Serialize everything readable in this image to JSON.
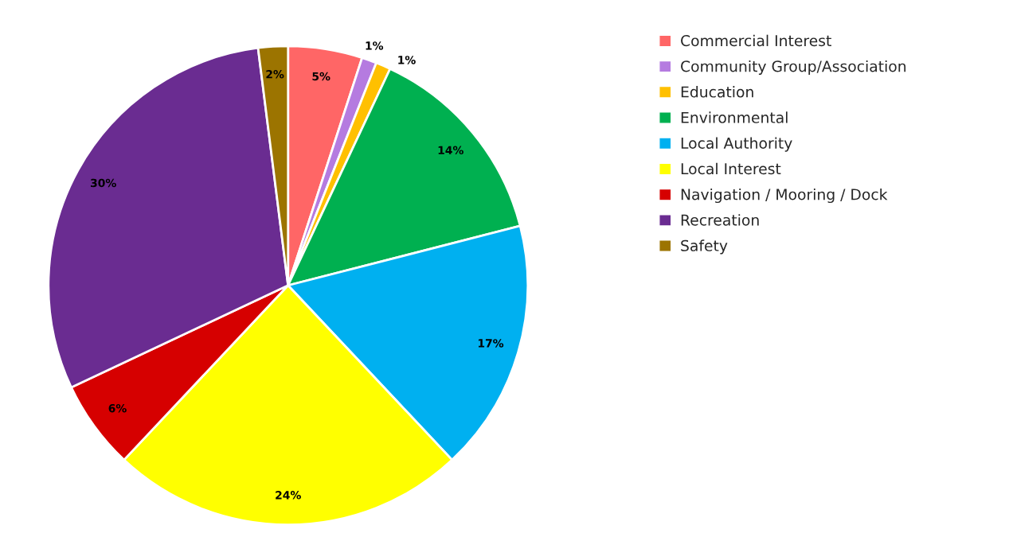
{
  "chart_data": {
    "type": "pie",
    "categories": [
      "Commercial Interest",
      "Community Group/Association",
      "Education",
      "Environmental",
      "Local Authority",
      "Local Interest",
      "Navigation / Mooring / Dock",
      "Recreation",
      "Safety"
    ],
    "values": [
      5,
      1,
      1,
      14,
      17,
      24,
      6,
      30,
      2
    ],
    "value_labels": [
      "5%",
      "1%",
      "1%",
      "14%",
      "17%",
      "24%",
      "6%",
      "30%",
      "2%"
    ],
    "colors": [
      "#ff6666",
      "#b57be0",
      "#ffc000",
      "#00b050",
      "#00b0f0",
      "#ffff00",
      "#d60000",
      "#6a2c91",
      "#9c7400"
    ],
    "legend": "right"
  }
}
